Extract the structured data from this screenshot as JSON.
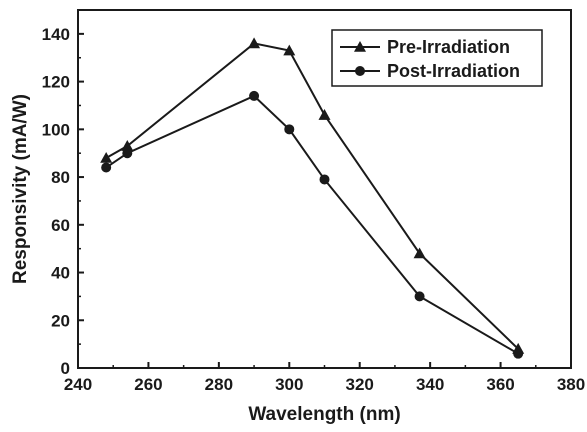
{
  "chart_data": {
    "type": "line",
    "xlabel": "Wavelength (nm)",
    "ylabel": "Responsivity (mA/W)",
    "xlim": [
      240,
      380
    ],
    "ylim": [
      0,
      150
    ],
    "x_ticks": [
      240,
      260,
      280,
      300,
      320,
      340,
      360,
      380
    ],
    "y_ticks": [
      0,
      20,
      40,
      60,
      80,
      100,
      120,
      140
    ],
    "grid": false,
    "legend_position": "top-right",
    "series": [
      {
        "name": "Pre-Irradiation",
        "marker": "triangle",
        "color": "#1a1a1a",
        "x": [
          248,
          254,
          290,
          300,
          310,
          337,
          365
        ],
        "y": [
          88,
          93,
          136,
          133,
          106,
          48,
          8
        ]
      },
      {
        "name": "Post-Irradiation",
        "marker": "circle",
        "color": "#1a1a1a",
        "x": [
          248,
          254,
          290,
          300,
          310,
          337,
          365
        ],
        "y": [
          84,
          90,
          114,
          100,
          79,
          30,
          6
        ]
      }
    ]
  }
}
